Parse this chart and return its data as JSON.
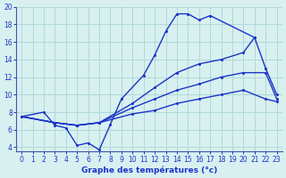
{
  "xlabel": "Graphe des températures (°c)",
  "bg_color": "#d8f0f0",
  "grid_color": "#b0d8d8",
  "line_color": "#1a35c8",
  "xlim": [
    -0.5,
    23.5
  ],
  "ylim": [
    3.5,
    20
  ],
  "xticks": [
    0,
    1,
    2,
    3,
    4,
    5,
    6,
    7,
    8,
    9,
    10,
    11,
    12,
    13,
    14,
    15,
    16,
    17,
    18,
    19,
    20,
    21,
    22,
    23
  ],
  "yticks": [
    4,
    6,
    8,
    10,
    12,
    14,
    16,
    18,
    20
  ],
  "s1_x": [
    0,
    2,
    3,
    4,
    5,
    6,
    7,
    8,
    9,
    11,
    12,
    13,
    14,
    15,
    16,
    17,
    21
  ],
  "s1_y": [
    7.5,
    8.0,
    6.5,
    6.2,
    4.2,
    4.5,
    3.7,
    6.6,
    9.5,
    12.2,
    14.5,
    17.2,
    19.2,
    19.2,
    18.5,
    19.0,
    16.5
  ],
  "s2_x": [
    0,
    3,
    5,
    7,
    10,
    12,
    14,
    16,
    18,
    20,
    21,
    22,
    23
  ],
  "s2_y": [
    7.5,
    6.8,
    6.5,
    6.8,
    9.0,
    10.8,
    12.5,
    13.5,
    14.0,
    14.8,
    16.5,
    13.0,
    10.0
  ],
  "s3_x": [
    0,
    3,
    5,
    7,
    10,
    12,
    14,
    16,
    18,
    20,
    22,
    23
  ],
  "s3_y": [
    7.5,
    6.8,
    6.5,
    6.8,
    8.5,
    9.5,
    10.5,
    11.2,
    12.0,
    12.5,
    12.5,
    9.5
  ],
  "s4_x": [
    0,
    3,
    5,
    7,
    10,
    12,
    14,
    16,
    18,
    20,
    22,
    23
  ],
  "s4_y": [
    7.5,
    6.8,
    6.5,
    6.8,
    7.8,
    8.2,
    9.0,
    9.5,
    10.0,
    10.5,
    9.5,
    9.2
  ],
  "marker": "o",
  "markersize": 2.2,
  "linewidth": 1.0,
  "tick_fontsize": 5.5,
  "xlabel_fontsize": 6.5
}
